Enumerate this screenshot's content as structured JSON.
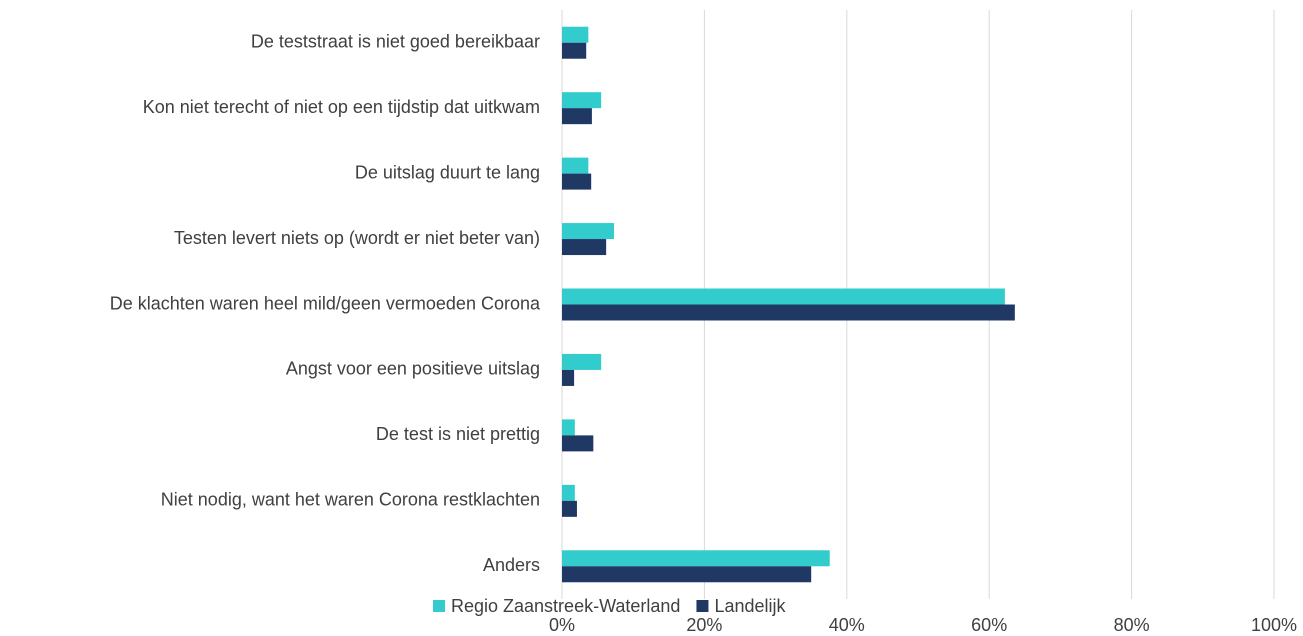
{
  "chart_data": {
    "type": "hbar",
    "categories": [
      "De teststraat is niet goed bereikbaar",
      "Kon niet terecht of niet op een tijdstip dat uitkwam",
      "De uitslag duurt te lang",
      "Testen levert niets op (wordt er niet beter van)",
      "De klachten waren heel mild/geen vermoeden Corona",
      "Angst voor een positieve uitslag",
      "De test is niet prettig",
      "Niet nodig, want het waren Corona restklachten",
      "Anders"
    ],
    "series": [
      {
        "name": "Regio Zaanstreek-Waterland",
        "color": "#33cccc",
        "values": [
          3.7,
          5.5,
          3.7,
          7.3,
          62.2,
          5.5,
          1.8,
          1.8,
          37.6
        ]
      },
      {
        "name": "Landelijk",
        "color": "#1f3864",
        "values": [
          3.4,
          4.2,
          4.1,
          6.2,
          63.6,
          1.7,
          4.4,
          2.1,
          35.0
        ]
      }
    ],
    "xlim": [
      0,
      100
    ],
    "xticks": [
      {
        "value": 0,
        "label": "0%"
      },
      {
        "value": 20,
        "label": "20%"
      },
      {
        "value": 40,
        "label": "40%"
      },
      {
        "value": 60,
        "label": "60%"
      },
      {
        "value": 80,
        "label": "80%"
      },
      {
        "value": 100,
        "label": "100%"
      }
    ],
    "grid": true,
    "legend": "bottom"
  }
}
